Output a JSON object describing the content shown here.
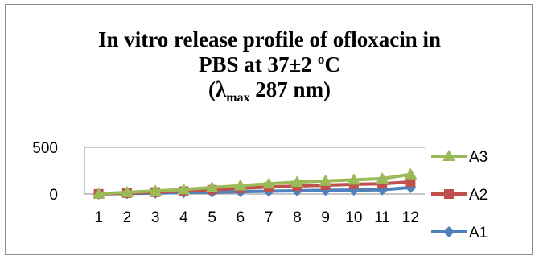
{
  "chart_data": {
    "type": "line",
    "title_lines": [
      "In vitro release profile of ofloxacin in",
      "PBS at 37±2 ºC"
    ],
    "title_line3": {
      "open": "(λ",
      "sub": "max",
      "close": " 287 nm)"
    },
    "xlabel": "",
    "ylabel": "",
    "categories": [
      "1",
      "2",
      "3",
      "4",
      "5",
      "6",
      "7",
      "8",
      "9",
      "10",
      "11",
      "12"
    ],
    "ylim": [
      0,
      500
    ],
    "yticks": [
      "0",
      "500"
    ],
    "grid": true,
    "legend": "right",
    "series": [
      {
        "name": "A3",
        "color": "#9bbb59",
        "marker": "triangle",
        "values": [
          2,
          18,
          33,
          48,
          70,
          90,
          110,
          128,
          140,
          152,
          165,
          210
        ]
      },
      {
        "name": "A2",
        "color": "#c0504d",
        "marker": "square",
        "values": [
          1,
          10,
          20,
          30,
          45,
          60,
          75,
          85,
          95,
          105,
          110,
          130
        ]
      },
      {
        "name": "A1",
        "color": "#4f81bd",
        "marker": "diamond",
        "values": [
          0,
          5,
          10,
          15,
          20,
          25,
          30,
          35,
          40,
          42,
          45,
          70
        ]
      }
    ]
  }
}
